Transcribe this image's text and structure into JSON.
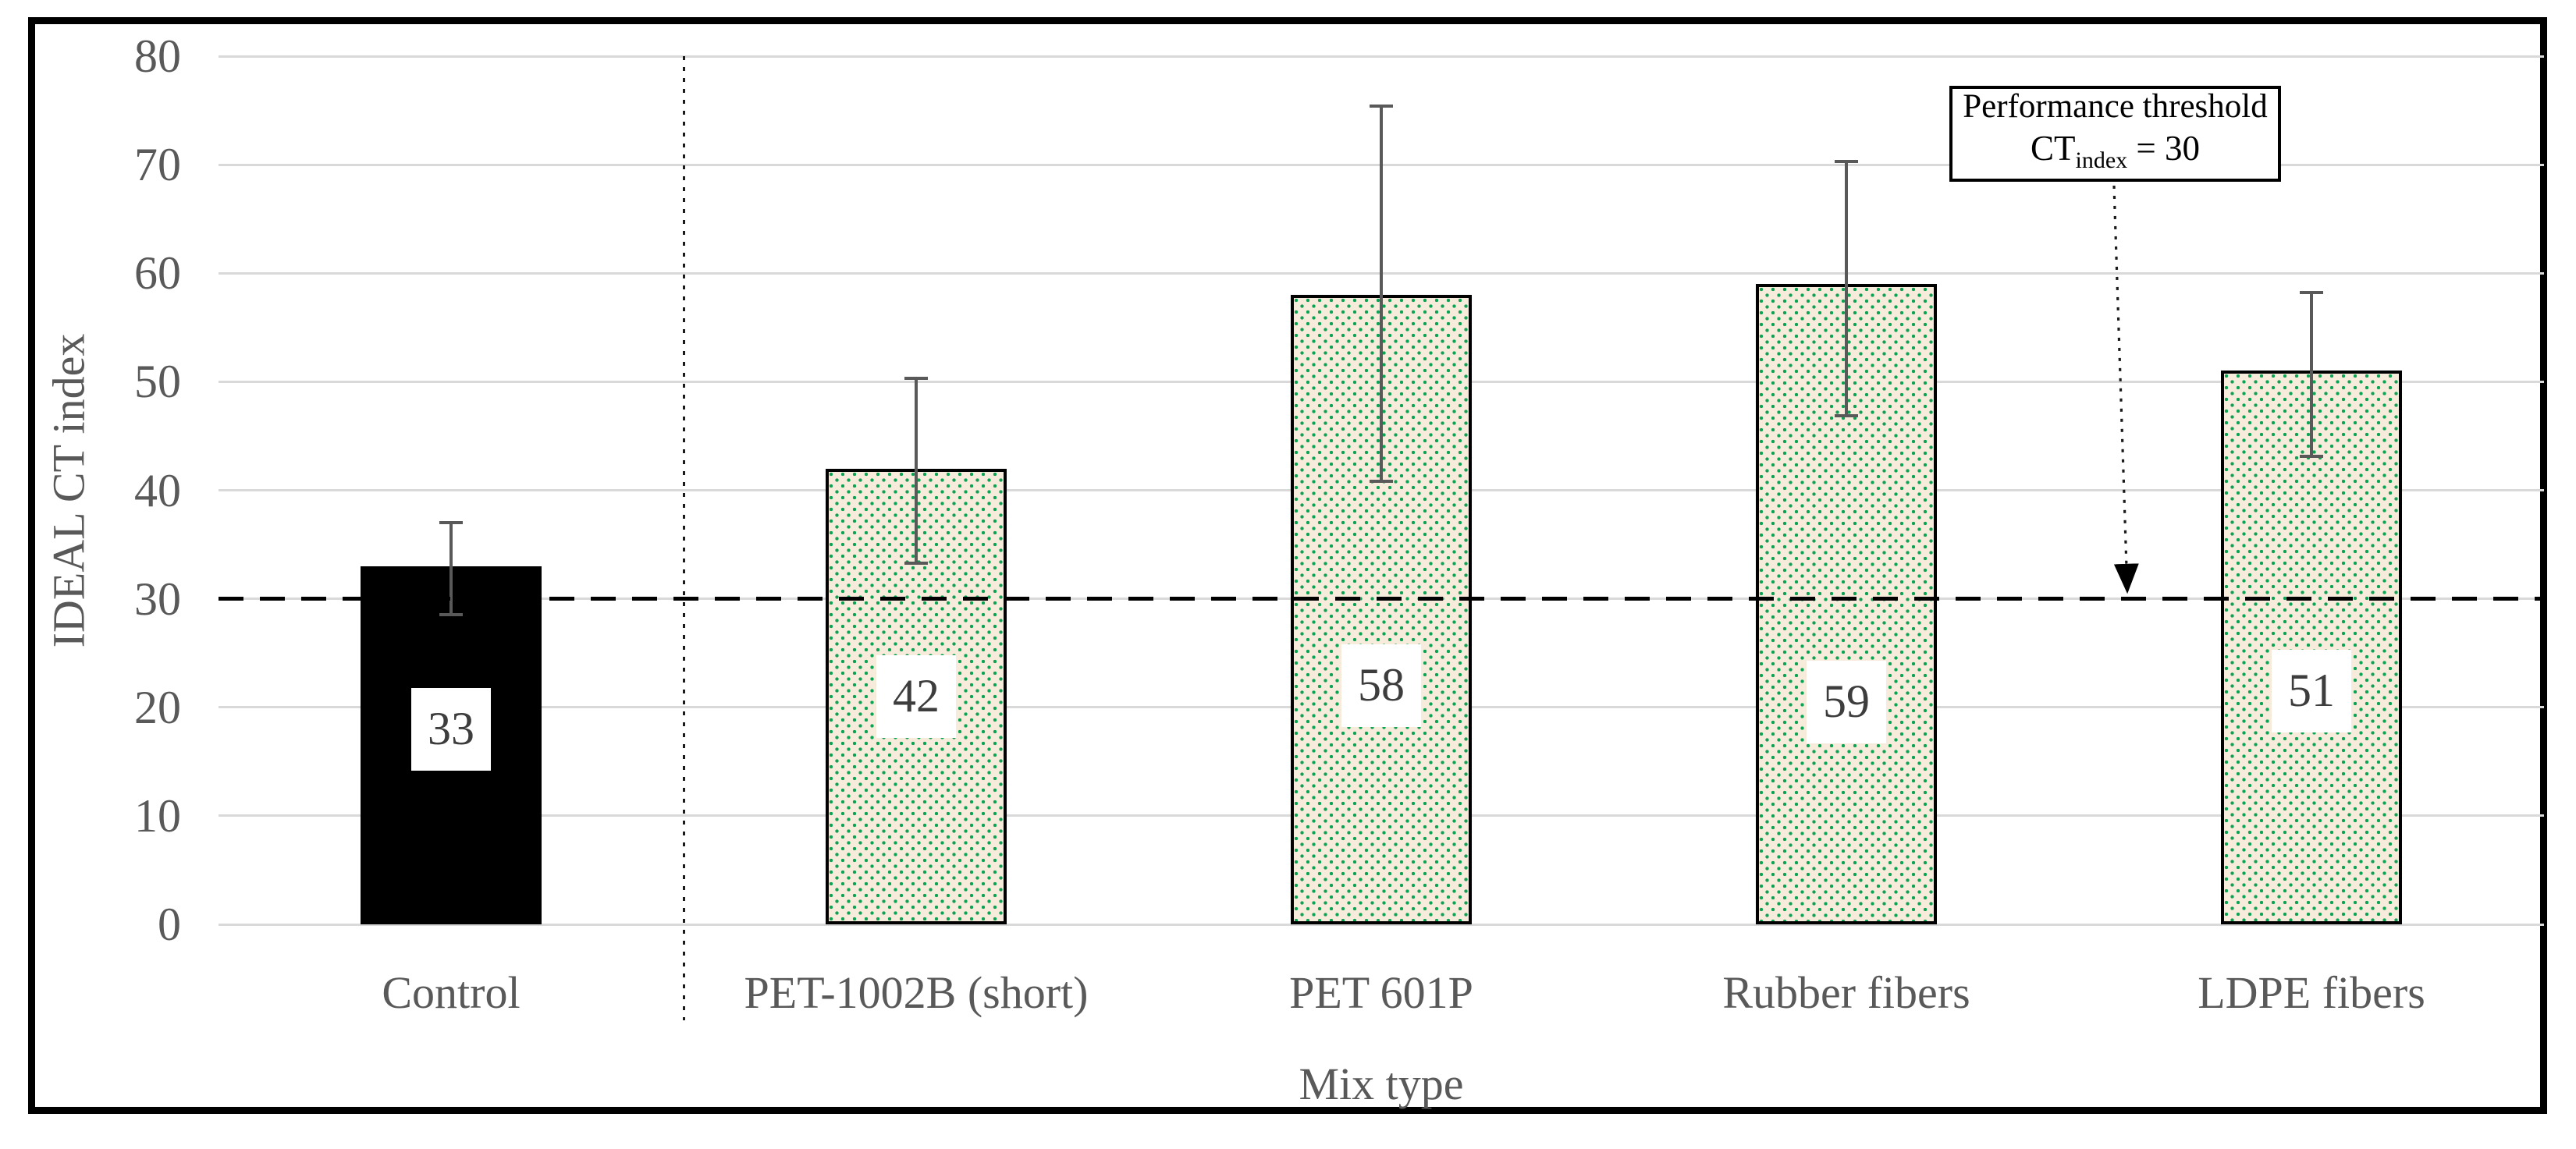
{
  "figure": {
    "y_axis_title": "IDEAL CT index",
    "x_axis_title": "Mix type",
    "annotation": {
      "line1": "Performance threshold",
      "line2_prefix": "CT",
      "line2_sub": "index",
      "line2_suffix": " = 30"
    }
  },
  "chart_data": {
    "type": "bar",
    "title": "",
    "xlabel": "Mix type",
    "ylabel": "IDEAL CT index",
    "categories": [
      "Control",
      "PET-1002B (short)",
      "PET 601P",
      "Rubber fibers",
      "LDPE fibers"
    ],
    "values": [
      33,
      42,
      58,
      59,
      51
    ],
    "data_labels": [
      "33",
      "42",
      "58",
      "59",
      "51"
    ],
    "error_bar_upper_value": [
      37.0,
      50.3,
      75.4,
      70.3,
      58.2
    ],
    "error_bar_lower_value": [
      28.5,
      33.3,
      40.8,
      46.9,
      43.1
    ],
    "ylim": [
      0,
      80
    ],
    "ytick_step": 10,
    "ytick_labels": [
      "0",
      "10",
      "20",
      "30",
      "40",
      "50",
      "60",
      "70",
      "80"
    ],
    "grid": "horizontal",
    "legend": "none",
    "threshold": {
      "value": 30,
      "style": "dashed-black",
      "label": "Performance threshold CT_index = 30"
    },
    "separator_after_category_index": 0,
    "bar_styles": [
      "solid-black",
      "green-dot-pattern",
      "green-dot-pattern",
      "green-dot-pattern",
      "green-dot-pattern"
    ],
    "label_center_values": [
      18,
      21,
      22,
      20.5,
      21.5
    ],
    "colors": {
      "bar_solid": "#000000",
      "pattern_background": "#f7ecdb",
      "pattern_dot_green": "#0ca352",
      "bar_border": "#000000",
      "gridline": "#d9d9d9",
      "error_bar": "#595959",
      "axis_text": "#595959",
      "threshold_line": "#000000",
      "annotation_text": "#000000"
    }
  }
}
